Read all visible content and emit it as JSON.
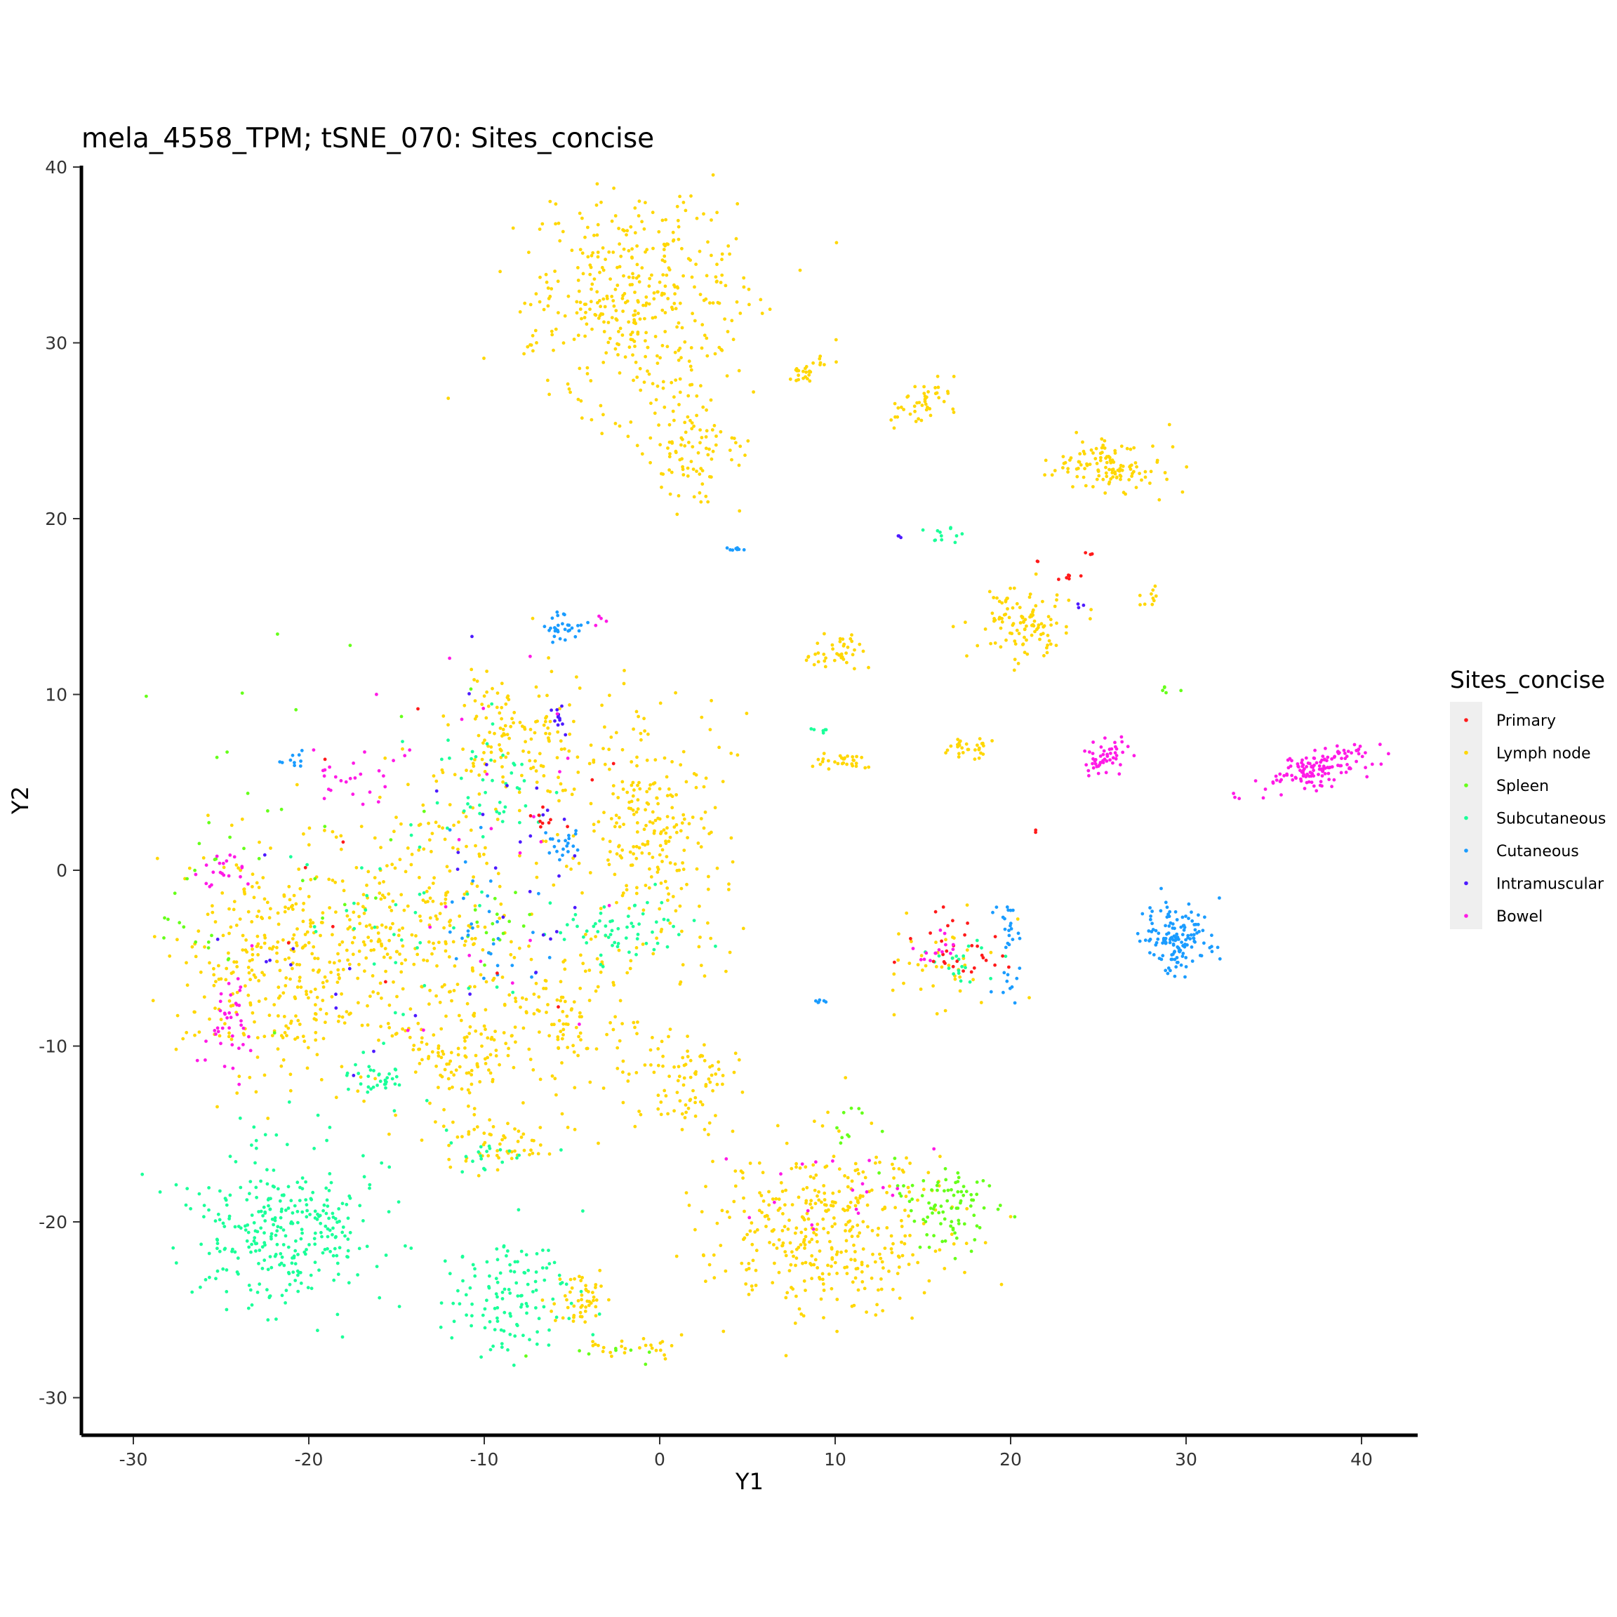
{
  "chart_data": {
    "type": "scatter",
    "title": "mela_4558_TPM; tSNE_070: Sites_concise",
    "xlabel": "Y1",
    "ylabel": "Y2",
    "xlim": [
      -33,
      43
    ],
    "ylim": [
      -32,
      40
    ],
    "x_ticks": [
      -30,
      -20,
      -10,
      0,
      10,
      20,
      30,
      40
    ],
    "y_ticks": [
      -30,
      -20,
      -10,
      0,
      10,
      20,
      30,
      40
    ],
    "grid": false,
    "legend": {
      "title": "Sites_concise",
      "position": "right",
      "entries": [
        {
          "label": "Primary",
          "color": "#FF1A1A"
        },
        {
          "label": "Lymph node",
          "color": "#FFD700"
        },
        {
          "label": "Spleen",
          "color": "#66FF1A"
        },
        {
          "label": "Subcutaneous",
          "color": "#1AFF99"
        },
        {
          "label": "Cutaneous",
          "color": "#1A9CFF"
        },
        {
          "label": "Intramuscular",
          "color": "#4D1AFF"
        },
        {
          "label": "Bowel",
          "color": "#FF1AE6"
        }
      ]
    },
    "series": [
      {
        "name": "Lymph node",
        "color": "#FFD700",
        "clusters": [
          {
            "cx": -1.5,
            "cy": 32,
            "sx": 3.2,
            "sy": 3.3,
            "n": 420,
            "rot": -0.55
          },
          {
            "cx": 2.0,
            "cy": 23.5,
            "sx": 1.5,
            "sy": 1.3,
            "n": 80,
            "rot": 0
          },
          {
            "cx": 25.5,
            "cy": 23.0,
            "sx": 1.6,
            "sy": 0.8,
            "n": 120,
            "rot": 0
          },
          {
            "cx": 20.5,
            "cy": 14.0,
            "sx": 1.3,
            "sy": 0.9,
            "n": 110,
            "rot": 0
          },
          {
            "cx": 15.0,
            "cy": 26.5,
            "sx": 1.0,
            "sy": 0.5,
            "n": 45,
            "rot": 0.5
          },
          {
            "cx": 8.5,
            "cy": 28.5,
            "sx": 0.9,
            "sy": 0.3,
            "n": 30,
            "rot": 0.6
          },
          {
            "cx": 10.2,
            "cy": 12.5,
            "sx": 0.7,
            "sy": 0.6,
            "n": 40,
            "rot": 0
          },
          {
            "cx": 10.5,
            "cy": 6.2,
            "sx": 0.8,
            "sy": 0.25,
            "n": 30,
            "rot": 0
          },
          {
            "cx": 18.0,
            "cy": 6.9,
            "sx": 0.6,
            "sy": 0.35,
            "n": 30,
            "rot": 0
          },
          {
            "cx": -21.5,
            "cy": -5,
            "sx": 3.0,
            "sy": 3.5,
            "n": 350,
            "rot": 0
          },
          {
            "cx": -13.5,
            "cy": -3,
            "sx": 3.0,
            "sy": 4.0,
            "n": 250,
            "rot": 0
          },
          {
            "cx": -8.5,
            "cy": 7.5,
            "sx": 2.0,
            "sy": 2.3,
            "n": 140,
            "rot": 0
          },
          {
            "cx": -0.5,
            "cy": 2.5,
            "sx": 2.2,
            "sy": 3.5,
            "n": 260,
            "rot": 0
          },
          {
            "cx": -5.5,
            "cy": -8.5,
            "sx": 2.0,
            "sy": 2.0,
            "n": 120,
            "rot": 0
          },
          {
            "cx": 1.5,
            "cy": -12,
            "sx": 1.6,
            "sy": 1.5,
            "n": 90,
            "rot": 0
          },
          {
            "cx": -11.5,
            "cy": -11,
            "sx": 1.6,
            "sy": 1.3,
            "n": 80,
            "rot": 0
          },
          {
            "cx": -9.0,
            "cy": -15.5,
            "sx": 1.8,
            "sy": 0.8,
            "n": 60,
            "rot": 0
          },
          {
            "cx": 9.5,
            "cy": -20.5,
            "sx": 3.6,
            "sy": 2.3,
            "n": 380,
            "rot": 0
          },
          {
            "cx": -4.5,
            "cy": -24.5,
            "sx": 0.9,
            "sy": 0.8,
            "n": 50,
            "rot": 0
          },
          {
            "cx": -1.5,
            "cy": -27.0,
            "sx": 1.5,
            "sy": 0.3,
            "n": 25,
            "rot": 0
          },
          {
            "cx": 28.0,
            "cy": 15.5,
            "sx": 0.35,
            "sy": 0.2,
            "n": 10,
            "rot": 0.4
          },
          {
            "cx": 16.0,
            "cy": -5.0,
            "sx": 1.5,
            "sy": 1.2,
            "n": 40,
            "rot": 0
          }
        ]
      },
      {
        "name": "Subcutaneous",
        "color": "#1AFF99",
        "clusters": [
          {
            "cx": -21.5,
            "cy": -20.5,
            "sx": 2.6,
            "sy": 2.3,
            "n": 310,
            "rot": 0
          },
          {
            "cx": -8.5,
            "cy": -24.5,
            "sx": 1.8,
            "sy": 1.8,
            "n": 120,
            "rot": 0
          },
          {
            "cx": -16.0,
            "cy": -12.0,
            "sx": 0.8,
            "sy": 0.6,
            "n": 35,
            "rot": 0
          },
          {
            "cx": -2.0,
            "cy": -3.5,
            "sx": 2.0,
            "sy": 0.9,
            "n": 60,
            "rot": 0
          },
          {
            "cx": -9.5,
            "cy": 5.0,
            "sx": 1.5,
            "sy": 1.8,
            "n": 40,
            "rot": 0
          },
          {
            "cx": 16.5,
            "cy": 19.2,
            "sx": 0.8,
            "sy": 0.3,
            "n": 12,
            "rot": 0
          },
          {
            "cx": 17.5,
            "cy": -5.5,
            "sx": 1.0,
            "sy": 0.6,
            "n": 20,
            "rot": 0
          },
          {
            "cx": -14.0,
            "cy": -2.0,
            "sx": 3.5,
            "sy": 4.0,
            "n": 40,
            "rot": 0
          },
          {
            "cx": 9.0,
            "cy": 8.0,
            "sx": 0.3,
            "sy": 0.1,
            "n": 6,
            "rot": 0
          },
          {
            "cx": -9.5,
            "cy": -16.0,
            "sx": 1.5,
            "sy": 0.6,
            "n": 20,
            "rot": 0
          }
        ]
      },
      {
        "name": "Spleen",
        "color": "#66FF1A",
        "clusters": [
          {
            "cx": 16.0,
            "cy": -18.5,
            "sx": 1.5,
            "sy": 1.0,
            "n": 70,
            "rot": 0
          },
          {
            "cx": 17.0,
            "cy": -20.5,
            "sx": 1.5,
            "sy": 1.0,
            "n": 15,
            "rot": 0
          },
          {
            "cx": 11.0,
            "cy": -14.5,
            "sx": 0.8,
            "sy": 0.6,
            "n": 10,
            "rot": 0
          },
          {
            "cx": -22.0,
            "cy": 3.0,
            "sx": 4.0,
            "sy": 5.0,
            "n": 30,
            "rot": 0
          },
          {
            "cx": -26.5,
            "cy": -3.0,
            "sx": 1.0,
            "sy": 1.5,
            "n": 12,
            "rot": 0
          },
          {
            "cx": -9.0,
            "cy": -3.0,
            "sx": 1.0,
            "sy": 1.0,
            "n": 15,
            "rot": 0
          },
          {
            "cx": 29.0,
            "cy": 10.3,
            "sx": 0.3,
            "sy": 0.15,
            "n": 5,
            "rot": 0
          },
          {
            "cx": -3.0,
            "cy": -27.5,
            "sx": 1.5,
            "sy": 0.3,
            "n": 8,
            "rot": 0
          }
        ]
      },
      {
        "name": "Cutaneous",
        "color": "#1A9CFF",
        "clusters": [
          {
            "cx": 29.5,
            "cy": -4.0,
            "sx": 1.0,
            "sy": 1.0,
            "n": 140,
            "rot": 0
          },
          {
            "cx": 20.0,
            "cy": -4.5,
            "sx": 0.4,
            "sy": 1.5,
            "n": 30,
            "rot": 0
          },
          {
            "cx": -5.5,
            "cy": 13.8,
            "sx": 0.6,
            "sy": 0.4,
            "n": 30,
            "rot": 0
          },
          {
            "cx": -5.5,
            "cy": 1.5,
            "sx": 0.5,
            "sy": 0.5,
            "n": 20,
            "rot": 0
          },
          {
            "cx": 4.3,
            "cy": 18.3,
            "sx": 0.3,
            "sy": 0.08,
            "n": 8,
            "rot": 0
          },
          {
            "cx": -9.5,
            "cy": -3.0,
            "sx": 1.5,
            "sy": 2.5,
            "n": 30,
            "rot": 0
          },
          {
            "cx": -21.0,
            "cy": 6.5,
            "sx": 0.4,
            "sy": 0.5,
            "n": 10,
            "rot": 0
          },
          {
            "cx": 9.2,
            "cy": -7.3,
            "sx": 0.3,
            "sy": 0.1,
            "n": 6,
            "rot": 0
          }
        ]
      },
      {
        "name": "Primary",
        "color": "#FF1A1A",
        "clusters": [
          {
            "cx": 17.0,
            "cy": -4.5,
            "sx": 1.5,
            "sy": 1.0,
            "n": 30,
            "rot": 0
          },
          {
            "cx": 23.3,
            "cy": 16.7,
            "sx": 0.3,
            "sy": 0.1,
            "n": 6,
            "rot": 0
          },
          {
            "cx": -6.5,
            "cy": 3.0,
            "sx": 0.5,
            "sy": 0.5,
            "n": 8,
            "rot": 0
          },
          {
            "cx": -14.0,
            "cy": 0.0,
            "sx": 5.0,
            "sy": 6.0,
            "n": 12,
            "rot": 0
          },
          {
            "cx": 21.5,
            "cy": 17.6,
            "sx": 0.05,
            "sy": 0.05,
            "n": 2,
            "rot": 0
          },
          {
            "cx": 24.5,
            "cy": 17.8,
            "sx": 0.3,
            "sy": 0.3,
            "n": 3,
            "rot": 0
          },
          {
            "cx": 21.5,
            "cy": 2.2,
            "sx": 0.05,
            "sy": 0.05,
            "n": 2,
            "rot": 0
          }
        ]
      },
      {
        "name": "Intramuscular",
        "color": "#4D1AFF",
        "clusters": [
          {
            "cx": -5.8,
            "cy": 8.5,
            "sx": 0.3,
            "sy": 0.6,
            "n": 12,
            "rot": 0
          },
          {
            "cx": -8.0,
            "cy": 1.0,
            "sx": 2.5,
            "sy": 5.0,
            "n": 25,
            "rot": 0
          },
          {
            "cx": 13.8,
            "cy": 19.0,
            "sx": 0.15,
            "sy": 0.2,
            "n": 3,
            "rot": 0
          },
          {
            "cx": -19.0,
            "cy": -5.0,
            "sx": 3.0,
            "sy": 3.0,
            "n": 12,
            "rot": 0
          },
          {
            "cx": 23.8,
            "cy": 15.0,
            "sx": 0.3,
            "sy": 0.2,
            "n": 3,
            "rot": 0
          }
        ]
      },
      {
        "name": "Bowel",
        "color": "#FF1AE6",
        "clusters": [
          {
            "cx": 37.5,
            "cy": 5.8,
            "sx": 1.6,
            "sy": 0.5,
            "n": 140,
            "rot": 0.3
          },
          {
            "cx": 25.5,
            "cy": 6.5,
            "sx": 0.8,
            "sy": 0.45,
            "n": 50,
            "rot": 0.5
          },
          {
            "cx": -24.5,
            "cy": -8.5,
            "sx": 0.8,
            "sy": 1.5,
            "n": 40,
            "rot": 0
          },
          {
            "cx": -25.0,
            "cy": 0.0,
            "sx": 0.8,
            "sy": 0.6,
            "n": 20,
            "rot": 0
          },
          {
            "cx": -17.5,
            "cy": 5.0,
            "sx": 1.5,
            "sy": 1.0,
            "n": 25,
            "rot": 0
          },
          {
            "cx": -9.5,
            "cy": 0.0,
            "sx": 3.0,
            "sy": 6.0,
            "n": 25,
            "rot": 0
          },
          {
            "cx": 15.5,
            "cy": -4.5,
            "sx": 1.0,
            "sy": 0.6,
            "n": 15,
            "rot": 0
          },
          {
            "cx": 10.0,
            "cy": -18.0,
            "sx": 2.5,
            "sy": 1.5,
            "n": 20,
            "rot": 0
          },
          {
            "cx": -3.0,
            "cy": 14.5,
            "sx": 0.4,
            "sy": 0.3,
            "n": 4,
            "rot": 0
          }
        ]
      }
    ]
  }
}
